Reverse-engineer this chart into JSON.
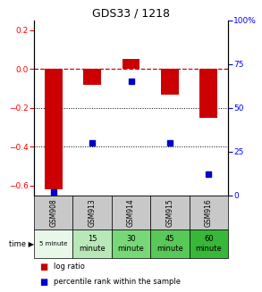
{
  "title": "GDS33 / 1218",
  "samples": [
    "GSM908",
    "GSM913",
    "GSM914",
    "GSM915",
    "GSM916"
  ],
  "time_labels": [
    "5 minute",
    "15\nminute",
    "30\nminute",
    "45\nminute",
    "60\nminute"
  ],
  "time_colors": [
    "#e8f8e8",
    "#b8e8b8",
    "#78d878",
    "#58c858",
    "#38b838"
  ],
  "log_ratio": [
    -0.62,
    -0.08,
    0.05,
    -0.13,
    -0.25
  ],
  "percentile": [
    2,
    30,
    65,
    30,
    12
  ],
  "bar_color": "#cc0000",
  "dot_color": "#0000cc",
  "ylim_left": [
    -0.65,
    0.25
  ],
  "ylim_right": [
    0,
    100
  ],
  "yticks_left": [
    0.2,
    0.0,
    -0.2,
    -0.4,
    -0.6
  ],
  "yticks_right": [
    100,
    75,
    50,
    25,
    0
  ],
  "dotted_lines": [
    -0.2,
    -0.4
  ],
  "bg_color": "#ffffff",
  "gsm_bg": "#c8c8c8"
}
